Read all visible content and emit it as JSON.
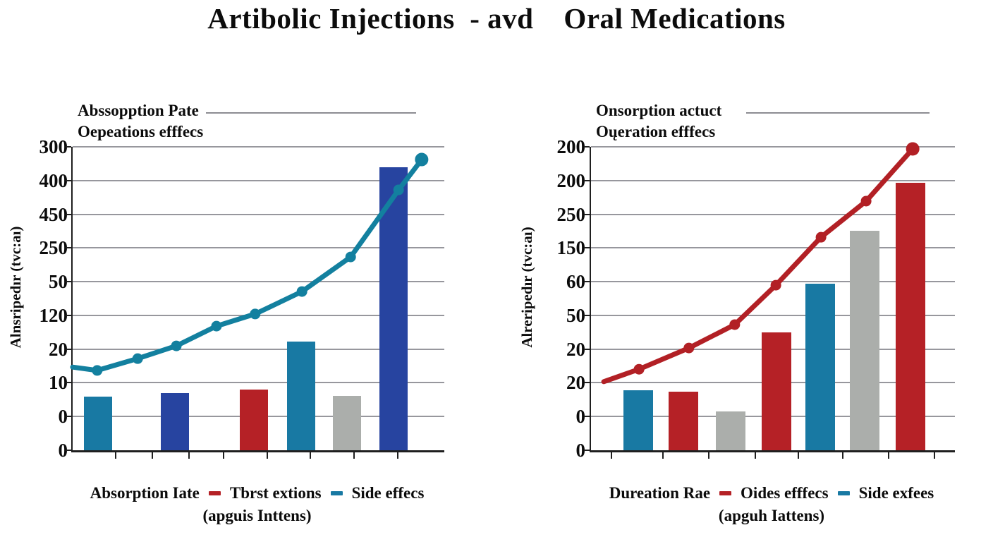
{
  "title": "Artibolic Injections  - avd    Oral Medications",
  "colors": {
    "teal": "#1879a3",
    "blue": "#2744a0",
    "red": "#b52126",
    "gray": "#abaeab",
    "line_teal": "#13809f",
    "line_red": "#b22025",
    "grid": "#97979d",
    "axis": "#1f1f1f",
    "text": "#0c0c0c"
  },
  "chart_data": [
    {
      "type": "bar+line",
      "subtitle1": "Abssopption Pate",
      "subtitle2": "Oepeations efffecs",
      "y_axis_title": "Alnsripedır (tvc:aı)",
      "y_tick_labels": [
        "300",
        "400",
        "450",
        "250",
        "50",
        "120",
        "20",
        "10",
        "0",
        "0"
      ],
      "x_tick_positions_pct": [
        11.6,
        21.4,
        31.3,
        40.6,
        52.4,
        63.9,
        75.7,
        87.5
      ],
      "bar_width_pct": 7.6,
      "bars": [
        {
          "color": "teal",
          "x_pct": 3.0,
          "height_pct": 17.7
        },
        {
          "color": "blue",
          "x_pct": 23.7,
          "height_pct": 18.8
        },
        {
          "color": "red",
          "x_pct": 45.0,
          "height_pct": 20.0
        },
        {
          "color": "teal",
          "x_pct": 57.7,
          "height_pct": 35.8
        },
        {
          "color": "gray",
          "x_pct": 70.0,
          "height_pct": 17.9
        },
        {
          "color": "blue",
          "x_pct": 82.5,
          "height_pct": 93.3
        }
      ],
      "line": {
        "color": "line_teal",
        "dot_start_index": 1,
        "points_pct": [
          [
            0,
            27.4
          ],
          [
            6.6,
            26.3
          ],
          [
            17.5,
            30.2
          ],
          [
            27.9,
            34.4
          ],
          [
            38.7,
            40.9
          ],
          [
            49.1,
            44.9
          ],
          [
            61.7,
            52.3
          ],
          [
            74.8,
            63.7
          ],
          [
            87.7,
            85.8
          ],
          [
            93.9,
            95.8
          ]
        ]
      },
      "legend": {
        "axis_label": "Absorption Iate",
        "items": [
          {
            "dash": "red",
            "label": "Tbrst extions"
          },
          {
            "dash": "teal",
            "label": "Side effecs"
          }
        ],
        "subline": "(apguis Inttens)"
      }
    },
    {
      "type": "bar+line",
      "subtitle1": "Onsorption actuct",
      "subtitle2": "Oųeration efffecs",
      "y_axis_title": "Alreripedır (tvc:aı)",
      "y_tick_labels": [
        "200",
        "200",
        "250",
        "150",
        "60",
        "50",
        "20",
        "20",
        "0",
        "0"
      ],
      "x_tick_positions_pct": [
        5.6,
        19.8,
        32.4,
        45.2,
        57.0,
        69.2,
        81.8,
        94.4
      ],
      "bar_width_pct": 8.1,
      "bars": [
        {
          "color": "teal",
          "x_pct": 8.9,
          "height_pct": 19.8
        },
        {
          "color": "red",
          "x_pct": 21.3,
          "height_pct": 19.3
        },
        {
          "color": "gray",
          "x_pct": 34.3,
          "height_pct": 12.8
        },
        {
          "color": "red",
          "x_pct": 46.9,
          "height_pct": 38.8
        },
        {
          "color": "teal",
          "x_pct": 58.9,
          "height_pct": 54.9
        },
        {
          "color": "gray",
          "x_pct": 71.1,
          "height_pct": 72.3
        },
        {
          "color": "red",
          "x_pct": 83.7,
          "height_pct": 88.1
        }
      ],
      "line": {
        "color": "line_red",
        "dot_start_index": 1,
        "points_pct": [
          [
            3.5,
            22.6
          ],
          [
            13.2,
            26.7
          ],
          [
            26.9,
            33.7
          ],
          [
            39.5,
            41.4
          ],
          [
            50.8,
            54.4
          ],
          [
            63.2,
            70.2
          ],
          [
            75.6,
            82.1
          ],
          [
            88.4,
            99.3
          ]
        ]
      },
      "legend": {
        "axis_label": "Dureation Rae",
        "items": [
          {
            "dash": "red",
            "label": "Oides efffecs"
          },
          {
            "dash": "teal",
            "label": "Side exfees"
          }
        ],
        "subline": "(apguh Iattens)"
      }
    }
  ]
}
